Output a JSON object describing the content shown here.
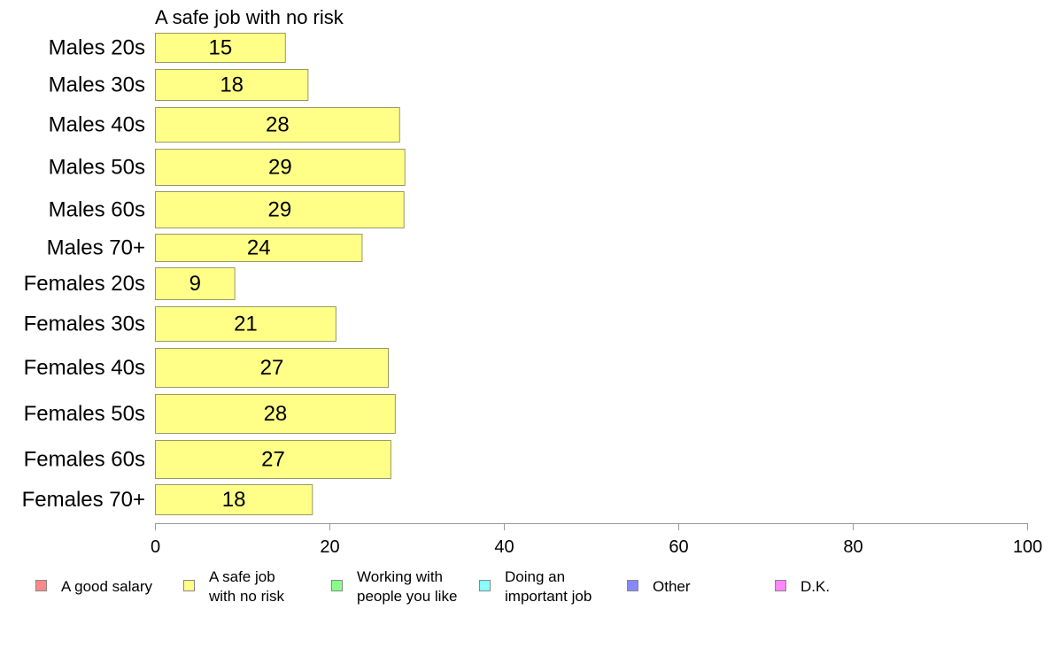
{
  "chart_data": {
    "type": "bar",
    "orientation": "horizontal",
    "title": "A safe job with no risk",
    "categories": [
      "Males 20s",
      "Males 30s",
      "Males 40s",
      "Males 50s",
      "Males 60s",
      "Males 70+",
      "Females 20s",
      "Females 30s",
      "Females 40s",
      "Females 50s",
      "Females 60s",
      "Females 70+"
    ],
    "series": [
      {
        "name": "A safe job with no risk",
        "color": "#ffff88",
        "values": [
          15,
          18,
          28,
          29,
          29,
          24,
          9,
          21,
          27,
          28,
          27,
          18
        ],
        "display_values": [
          15,
          17.6,
          28.1,
          28.7,
          28.6,
          23.8,
          9.2,
          20.8,
          26.8,
          27.6,
          27.1,
          18.1
        ]
      }
    ],
    "xlim": [
      0,
      100
    ],
    "xticks": [
      0,
      20,
      40,
      60,
      80,
      100
    ],
    "grid": false,
    "legend_position": "bottom",
    "legend": [
      {
        "lines": [
          "A good salary"
        ],
        "color": "#ff8888"
      },
      {
        "lines": [
          "A safe job",
          "with no risk"
        ],
        "color": "#ffff88"
      },
      {
        "lines": [
          "Working with",
          "people you like"
        ],
        "color": "#88ff88"
      },
      {
        "lines": [
          "Doing an",
          "important job"
        ],
        "color": "#88ffff"
      },
      {
        "lines": [
          "Other"
        ],
        "color": "#8888ff"
      },
      {
        "lines": [
          "D.K."
        ],
        "color": "#ff88ff"
      }
    ],
    "bar_border_color": "#999966",
    "axis_color": "#999999"
  }
}
